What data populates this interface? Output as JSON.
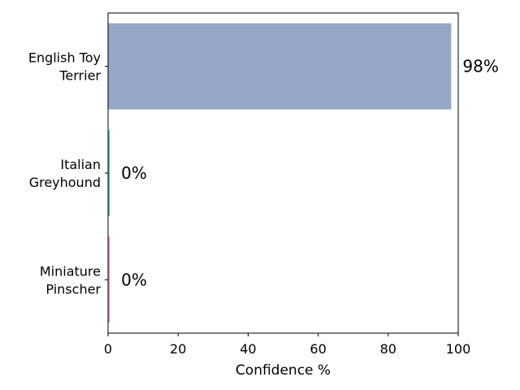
{
  "chart_data": {
    "type": "bar",
    "orientation": "horizontal",
    "categories": [
      [
        "English Toy",
        "Terrier"
      ],
      [
        "Italian",
        "Greyhound"
      ],
      [
        "Miniature",
        "Pinscher"
      ]
    ],
    "values": [
      98,
      0.5,
      0.5
    ],
    "value_labels": [
      "98%",
      "0%",
      "0%"
    ],
    "colors": [
      "#96a6c7",
      "#5fc2a0",
      "#e88fc3"
    ],
    "xlabel": "Confidence %",
    "xlim": [
      0,
      100
    ],
    "xticks": [
      0,
      20,
      40,
      60,
      80,
      100
    ],
    "grid": false,
    "legend": "none"
  }
}
